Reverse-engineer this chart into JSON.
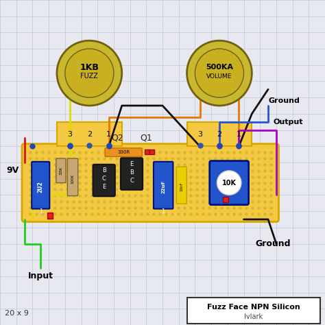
{
  "title": "Fuzz Face NPN Silicon",
  "subtitle": "IvIark",
  "grid_label": "20 x 9",
  "bg_color": "#e8e8f0",
  "grid_color": "#c0c8d8",
  "board_color": "#f5c842",
  "board_edge_color": "#d4a800",
  "pot1_label": "1KB\nFUZZ",
  "pot2_label": "500KA\nVOLUME",
  "pot_color": "#c8b830",
  "pot_ring_color": "#8a7a10"
}
